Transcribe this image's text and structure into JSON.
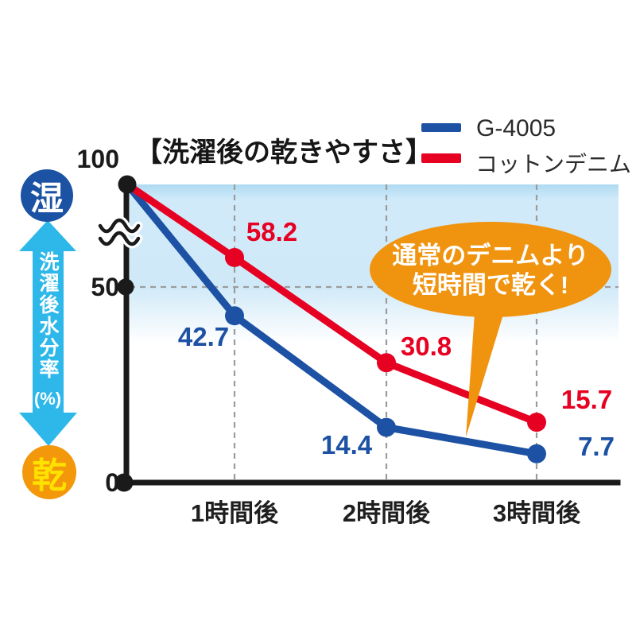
{
  "title": "【洗濯後の乾きやすさ】",
  "legend": {
    "items": [
      {
        "label": "G-4005",
        "color": "#1c51a4"
      },
      {
        "label": "コットンデニム",
        "color": "#e60021"
      }
    ]
  },
  "y_axis": {
    "tick_100": "100",
    "tick_50": "50",
    "tick_0": "0",
    "has_break": true
  },
  "x_axis": {
    "labels": [
      "1時間後",
      "2時間後",
      "3時間後"
    ]
  },
  "gauge": {
    "wet": "湿",
    "dry": "乾",
    "label": "洗濯後水分率",
    "unit": "(%)",
    "arrow_color": "#2eb8ea",
    "wet_color": "#1b52a3",
    "dry_color": "#f3970b",
    "dry_text_color": "#ffe100"
  },
  "bubble": {
    "line1": "通常のデニムより",
    "line2": "短時間で乾く!",
    "color": "#f0930f"
  },
  "chart_data": {
    "type": "line",
    "title": "【洗濯後の乾きやすさ】",
    "categories": [
      "1時間後",
      "2時間後",
      "3時間後"
    ],
    "series": [
      {
        "name": "G-4005",
        "color": "#1c51a4",
        "start_value": 100,
        "values": [
          42.7,
          14.4,
          7.7
        ]
      },
      {
        "name": "コットンデニム",
        "color": "#e60021",
        "start_value": 100,
        "values": [
          58.2,
          30.8,
          15.7
        ]
      }
    ],
    "ylabel": "洗濯後水分率(%)",
    "ylim": [
      0,
      100
    ],
    "y_ticks": [
      0,
      50,
      100
    ],
    "y_axis_break": true,
    "grid": "dashed",
    "legend_position": "top-right",
    "annotation": "通常のデニムより短時間で乾く!",
    "high_label": "湿",
    "low_label": "乾"
  }
}
